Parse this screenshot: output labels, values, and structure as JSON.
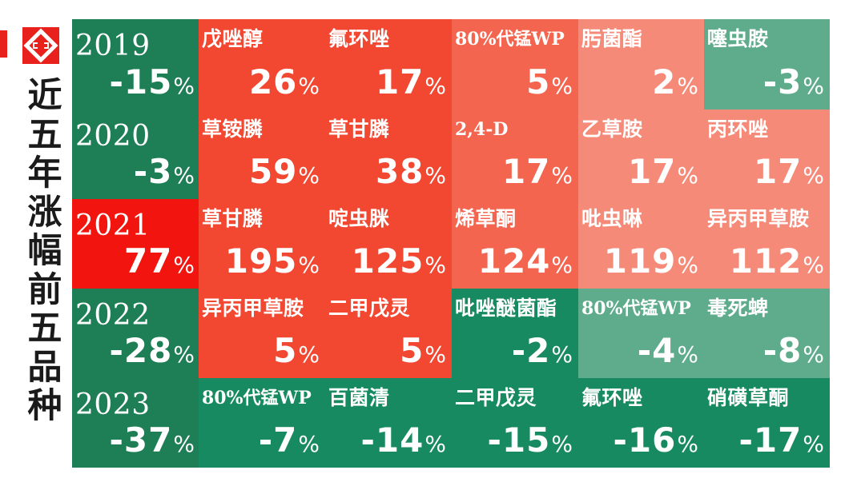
{
  "title": "近五年涨幅前五品种",
  "colors": {
    "green_dark": "#1e7e55",
    "green_mid": "#188a62",
    "green_light": "#5fac8d",
    "red_bright": "#f2140e",
    "red": "#f24731",
    "red_mid": "#f4654f",
    "red_light": "#f58a78"
  },
  "rows": [
    {
      "year": "2019",
      "year_value": "-15",
      "year_color": "#1e7e55",
      "items": [
        {
          "name": "戊唑醇",
          "value": "26",
          "color": "#f24731"
        },
        {
          "name": "氟环唑",
          "value": "17",
          "color": "#f24731"
        },
        {
          "name": "80%代锰WP",
          "value": "5",
          "color": "#f4654f"
        },
        {
          "name": "肟菌酯",
          "value": "2",
          "color": "#f58a78"
        },
        {
          "name": "噻虫胺",
          "value": "-3",
          "color": "#5fac8d"
        }
      ]
    },
    {
      "year": "2020",
      "year_value": "-3",
      "year_color": "#1e7e55",
      "items": [
        {
          "name": "草铵膦",
          "value": "59",
          "color": "#f24731"
        },
        {
          "name": "草甘膦",
          "value": "38",
          "color": "#f24731"
        },
        {
          "name": "2,4-D",
          "value": "17",
          "color": "#f4654f"
        },
        {
          "name": "乙草胺",
          "value": "17",
          "color": "#f58a78"
        },
        {
          "name": "丙环唑",
          "value": "17",
          "color": "#f58a78"
        }
      ]
    },
    {
      "year": "2021",
      "year_value": "77",
      "year_color": "#f2140e",
      "items": [
        {
          "name": "草甘膦",
          "value": "195",
          "color": "#f24731"
        },
        {
          "name": "啶虫脒",
          "value": "125",
          "color": "#f24731"
        },
        {
          "name": "烯草酮",
          "value": "124",
          "color": "#f4654f"
        },
        {
          "name": "吡虫啉",
          "value": "119",
          "color": "#f58a78"
        },
        {
          "name": "异丙甲草胺",
          "value": "112",
          "color": "#f58a78"
        }
      ]
    },
    {
      "year": "2022",
      "year_value": "-28",
      "year_color": "#1e7e55",
      "items": [
        {
          "name": "异丙甲草胺",
          "value": "5",
          "color": "#f24731"
        },
        {
          "name": "二甲戊灵",
          "value": "5",
          "color": "#f24731"
        },
        {
          "name": "吡唑醚菌酯",
          "value": "-2",
          "color": "#188a62"
        },
        {
          "name": "80%代锰WP",
          "value": "-4",
          "color": "#5fac8d"
        },
        {
          "name": "毒死蜱",
          "value": "-8",
          "color": "#5fac8d"
        }
      ]
    },
    {
      "year": "2023",
      "year_value": "-37",
      "year_color": "#1e7e55",
      "items": [
        {
          "name": "80%代锰WP",
          "value": "-7",
          "color": "#188a62"
        },
        {
          "name": "百菌清",
          "value": "-14",
          "color": "#188a62"
        },
        {
          "name": "二甲戊灵",
          "value": "-15",
          "color": "#188a62"
        },
        {
          "name": "氟环唑",
          "value": "-16",
          "color": "#188a62"
        },
        {
          "name": "硝磺草酮",
          "value": "-17",
          "color": "#188a62"
        }
      ]
    }
  ],
  "percent_sign": "%"
}
